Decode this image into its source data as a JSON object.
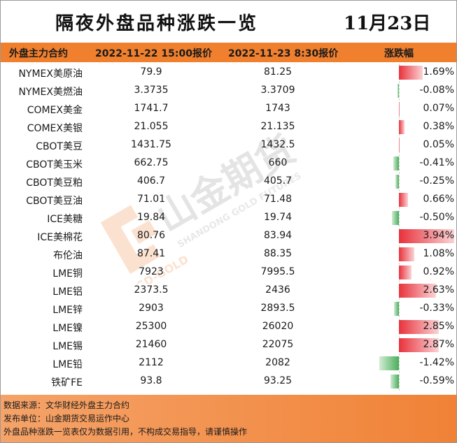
{
  "title": "隔夜外盘品种涨跌一览",
  "date": "11月23日",
  "headers": {
    "contract": "外盘主力合约",
    "price1": "2022-11-22 15:00报价",
    "price2": "2022-11-23 8:30报价",
    "change": "涨跌幅"
  },
  "rows": [
    {
      "name": "NYMEX美原油",
      "p1": "79.9",
      "p2": "81.25",
      "pct": "1.69%",
      "value": 1.69
    },
    {
      "name": "NYMEX美燃油",
      "p1": "3.3735",
      "p2": "3.3709",
      "pct": "-0.08%",
      "value": -0.08
    },
    {
      "name": "COMEX美金",
      "p1": "1741.7",
      "p2": "1743",
      "pct": "0.07%",
      "value": 0.07
    },
    {
      "name": "COMEX美银",
      "p1": "21.055",
      "p2": "21.135",
      "pct": "0.38%",
      "value": 0.38
    },
    {
      "name": "CBOT美豆",
      "p1": "1431.75",
      "p2": "1432.5",
      "pct": "0.05%",
      "value": 0.05
    },
    {
      "name": "CBOT美玉米",
      "p1": "662.75",
      "p2": "660",
      "pct": "-0.41%",
      "value": -0.41
    },
    {
      "name": "CBOT美豆粕",
      "p1": "406.7",
      "p2": "405.7",
      "pct": "-0.25%",
      "value": -0.25
    },
    {
      "name": "CBOT美豆油",
      "p1": "71.01",
      "p2": "71.48",
      "pct": "0.66%",
      "value": 0.66
    },
    {
      "name": "ICE美糖",
      "p1": "19.84",
      "p2": "19.74",
      "pct": "-0.50%",
      "value": -0.5
    },
    {
      "name": "ICE美棉花",
      "p1": "80.76",
      "p2": "83.94",
      "pct": "3.94%",
      "value": 3.94
    },
    {
      "name": "布伦油",
      "p1": "87.41",
      "p2": "88.35",
      "pct": "1.08%",
      "value": 1.08
    },
    {
      "name": "LME铜",
      "p1": "7923",
      "p2": "7995.5",
      "pct": "0.92%",
      "value": 0.92
    },
    {
      "name": "LME铝",
      "p1": "2373.5",
      "p2": "2436",
      "pct": "2.63%",
      "value": 2.63
    },
    {
      "name": "LME锌",
      "p1": "2903",
      "p2": "2893.5",
      "pct": "-0.33%",
      "value": -0.33
    },
    {
      "name": "LME镍",
      "p1": "25300",
      "p2": "26020",
      "pct": "2.85%",
      "value": 2.85
    },
    {
      "name": "LME锡",
      "p1": "21460",
      "p2": "22075",
      "pct": "2.87%",
      "value": 2.87
    },
    {
      "name": "LME铅",
      "p1": "2112",
      "p2": "2082",
      "pct": "-1.42%",
      "value": -1.42
    },
    {
      "name": "铁矿FE",
      "p1": "93.8",
      "p2": "93.25",
      "pct": "-0.59%",
      "value": -0.59
    }
  ],
  "colors": {
    "header_bg": "#f07f2e",
    "positive": "#e8323c",
    "negative": "#4aae5a"
  },
  "watermark": {
    "brand_cn": "山金期货",
    "brand_en": "SHANDONG GOLD FUTURES",
    "brand_short": "SD-GOLD"
  },
  "footer": {
    "source": "数据来源：文华财经外盘主力合约",
    "publisher": "发布单位：山金期货交易运作中心",
    "disclaimer": "外盘品种涨跌一览表仅为数据引用，不构成交易指导，请谨慎操作"
  }
}
